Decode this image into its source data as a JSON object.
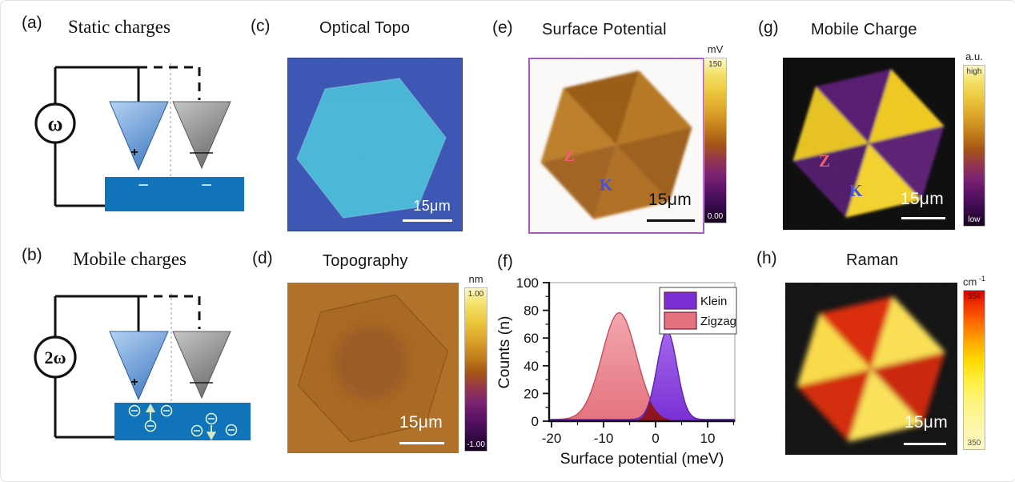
{
  "colors": {
    "accent_border": "#a35cc0",
    "sample_blue": "#1173ba",
    "tip_blue_light": "#b4d2f2",
    "tip_blue": "#4a80c6",
    "tip_gray_light": "#c6c6c6",
    "tip_gray": "#6e6e6e",
    "wire_black": "#111111",
    "optical_bg": "#3a55b4",
    "optical_flake": "#49b7d8",
    "topo_bg": "#b06b1d",
    "topo_flake": "#a86317",
    "z_label": "#f2606c",
    "k_label": "#4150e6",
    "klein_fill": "#7a2fd4",
    "klein_fill_light": "#a368ec",
    "klein_stroke": "#5a22b4",
    "zigzag_fill": "#e4737e",
    "zigzag_fill_light": "#f3a6ad",
    "zigzag_stroke": "#c24f5c",
    "overlap_fill": "#8e1420"
  },
  "hex_colors": {
    "surface_potential": [
      "#b8741f",
      "#98580f",
      "#bd7b24",
      "#a2611a",
      "#b06c1c",
      "#9c5c13"
    ],
    "mobile_charge": [
      "#f2ca1e",
      "#55176e",
      "#e8c31c",
      "#4e1468",
      "#f6d32a",
      "#5a1a72"
    ],
    "raman": [
      "#ffe24d",
      "#dd2200",
      "#ffdd3f",
      "#d42000",
      "#ffe552",
      "#cc1e00"
    ]
  },
  "panels": {
    "a": {
      "label": "(a)",
      "title": "Static charges",
      "source": "ω",
      "tip_charge": "+",
      "sample_charge": "−"
    },
    "b": {
      "label": "(b)",
      "title": "Mobile charges",
      "source": "2ω",
      "tip_charge": "+",
      "sample_charge": "−"
    },
    "c": {
      "label": "(c)",
      "title": "Optical Topo",
      "scalebar": "15μm"
    },
    "d": {
      "label": "(d)",
      "title": "Topography",
      "scalebar": "15μm",
      "colorbar": {
        "unit": "nm",
        "max": "1.00",
        "min": "-1.00"
      }
    },
    "e": {
      "label": "(e)",
      "title": "Surface Potential",
      "scalebar": "15μm",
      "zone_z": "Z",
      "zone_k": "K",
      "colorbar": {
        "unit": "mV",
        "max": "150",
        "min": "0.00"
      }
    },
    "f": {
      "label": "(f)"
    },
    "g": {
      "label": "(g)",
      "title": "Mobile Charge",
      "scalebar": "15μm",
      "zone_z": "Z",
      "zone_k": "K",
      "colorbar": {
        "unit": "a.u.",
        "max": "high",
        "min": "low"
      }
    },
    "h": {
      "label": "(h)",
      "title": "Raman",
      "scalebar": "15μm",
      "colorbar": {
        "unit": "cm",
        "unit_sup": "-1",
        "max": "354",
        "min": "350"
      }
    }
  },
  "chart_data": {
    "type": "area",
    "title": "",
    "xlabel": "Surface potential (meV)",
    "ylabel": "Counts (n)",
    "xlim": [
      -20.5,
      15.2
    ],
    "ylim": [
      0,
      100
    ],
    "x_ticks": [
      -20,
      -10,
      0,
      10
    ],
    "x_minor_ticks": [
      -15,
      -5,
      5,
      15
    ],
    "y_ticks": [
      0,
      20,
      40,
      60,
      80,
      100
    ],
    "y_minor_ticks": [
      10,
      30,
      50,
      70,
      90
    ],
    "grid": false,
    "baseline_counts": 1.2,
    "legend": [
      "Klein",
      "Zigzag"
    ],
    "legend_position": "top-right",
    "series": [
      {
        "name": "Zigzag",
        "distribution": "gaussian",
        "mean": -7.0,
        "sd": 3.3,
        "peak": 77
      },
      {
        "name": "Klein",
        "distribution": "gaussian",
        "mean": 2.2,
        "sd": 1.9,
        "peak": 64
      }
    ]
  }
}
